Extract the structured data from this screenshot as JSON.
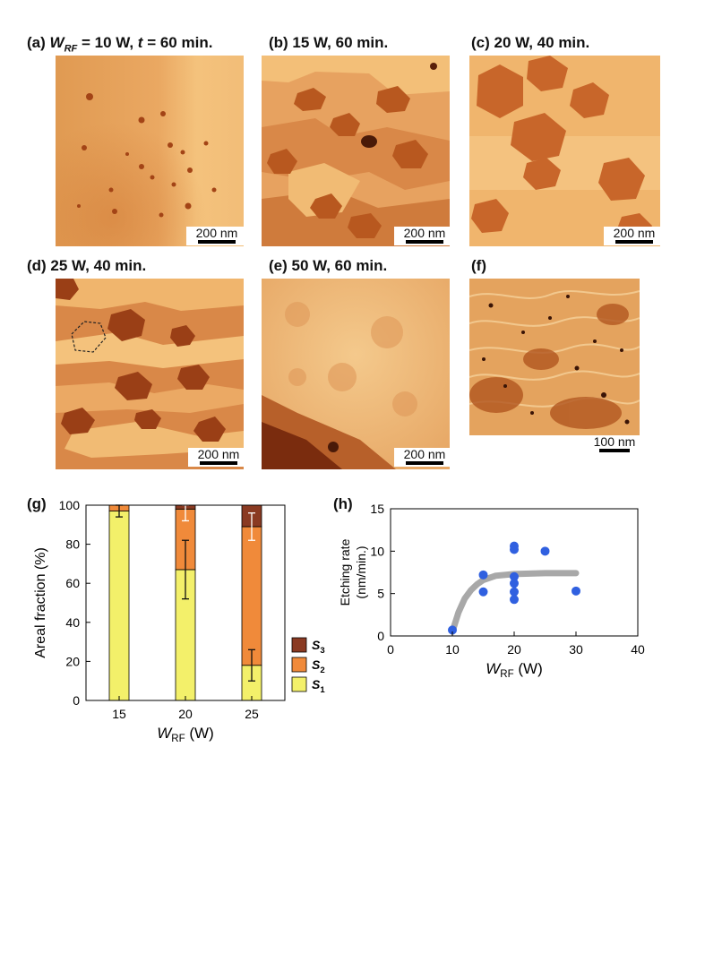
{
  "panels": {
    "a": {
      "label": "(a)",
      "symbol_main": "W",
      "symbol_sub": "RF",
      "text_mid": " = 10 W, ",
      "symbol_t": "t",
      "text_end": " = 60 min.",
      "scale": "200 nm"
    },
    "b": {
      "title": "(b) 15 W, 60 min.",
      "scale": "200 nm"
    },
    "c": {
      "title": "(c) 20 W, 40 min.",
      "scale": "200 nm"
    },
    "d": {
      "title": "(d) 25 W, 40 min.",
      "scale": "200 nm"
    },
    "e": {
      "title": "(e) 50 W, 60 min.",
      "scale": "200 nm"
    },
    "f": {
      "title": "(f)",
      "scale": "100 nm"
    },
    "g": {
      "title": "(g)"
    },
    "h": {
      "title": "(h)"
    }
  },
  "colors": {
    "s1": "#f3f06a",
    "s2": "#f08a3a",
    "s3": "#8a3a22",
    "dots": "#3060e0",
    "fit": "#a8a8a8",
    "afm_light": "#f4c27c",
    "afm_mid": "#d9823f",
    "afm_dark": "#9a3f16"
  },
  "chart_data": [
    {
      "id": "g",
      "type": "bar",
      "stacked": true,
      "categories": [
        "15",
        "20",
        "25"
      ],
      "series": [
        {
          "name": "S1",
          "values": [
            97,
            67,
            18
          ],
          "errors": [
            3,
            15,
            8
          ]
        },
        {
          "name": "S2",
          "values": [
            3,
            31,
            71
          ],
          "errors": [
            0,
            6,
            7
          ]
        },
        {
          "name": "S3",
          "values": [
            0,
            2,
            11
          ],
          "errors": [
            0,
            0,
            0
          ]
        }
      ],
      "xlabel_main": "W",
      "xlabel_sub": "RF",
      "xlabel_unit": " (W)",
      "ylabel": "Areal fraction  (%)",
      "ylim": [
        0,
        100
      ],
      "yticks": [
        0,
        20,
        40,
        60,
        80,
        100
      ],
      "legend": [
        "S3",
        "S2",
        "S1"
      ],
      "legend_position": "right"
    },
    {
      "id": "h",
      "type": "scatter",
      "points": [
        [
          10,
          0.7
        ],
        [
          15,
          7.2
        ],
        [
          15,
          5.2
        ],
        [
          20,
          10.6
        ],
        [
          20,
          10.2
        ],
        [
          20,
          7.0
        ],
        [
          20,
          6.2
        ],
        [
          20,
          5.2
        ],
        [
          20,
          4.3
        ],
        [
          25,
          10.0
        ],
        [
          30,
          5.3
        ]
      ],
      "fit_line": [
        [
          10,
          0.5
        ],
        [
          11,
          2.8
        ],
        [
          12,
          4.4
        ],
        [
          13,
          5.4
        ],
        [
          14,
          6.1
        ],
        [
          15,
          6.6
        ],
        [
          17,
          7.1
        ],
        [
          20,
          7.3
        ],
        [
          25,
          7.4
        ],
        [
          30,
          7.4
        ]
      ],
      "xlabel_main": "W",
      "xlabel_sub": "RF",
      "xlabel_unit": " (W)",
      "ylabel_line1": "Etching rate",
      "ylabel_line2": "(nm/min.)",
      "xlim": [
        0,
        40
      ],
      "ylim": [
        0,
        15
      ],
      "xticks": [
        0,
        10,
        20,
        30,
        40
      ],
      "yticks": [
        0,
        5,
        10,
        15
      ]
    }
  ]
}
